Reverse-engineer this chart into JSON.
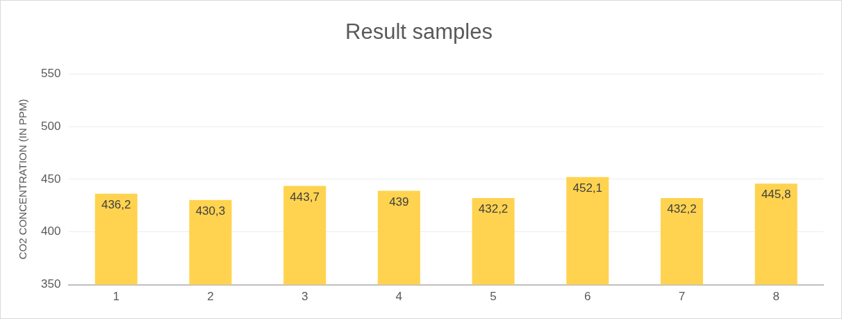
{
  "chart_data": {
    "type": "bar",
    "title": "Result samples",
    "ylabel": "CO2 CONCENTRATION (IN PPM)",
    "categories": [
      "1",
      "2",
      "3",
      "4",
      "5",
      "6",
      "7",
      "8"
    ],
    "values": [
      436.2,
      430.3,
      443.7,
      439,
      432.2,
      452.1,
      432.2,
      445.8
    ],
    "value_labels": [
      "436,2",
      "430,3",
      "443,7",
      "439",
      "432,2",
      "452,1",
      "432,2",
      "445,8"
    ],
    "color": "#ffd34f",
    "ylim": [
      350,
      550
    ],
    "yticks": [
      350,
      400,
      450,
      500,
      550
    ],
    "grid": "y",
    "legend": false
  }
}
